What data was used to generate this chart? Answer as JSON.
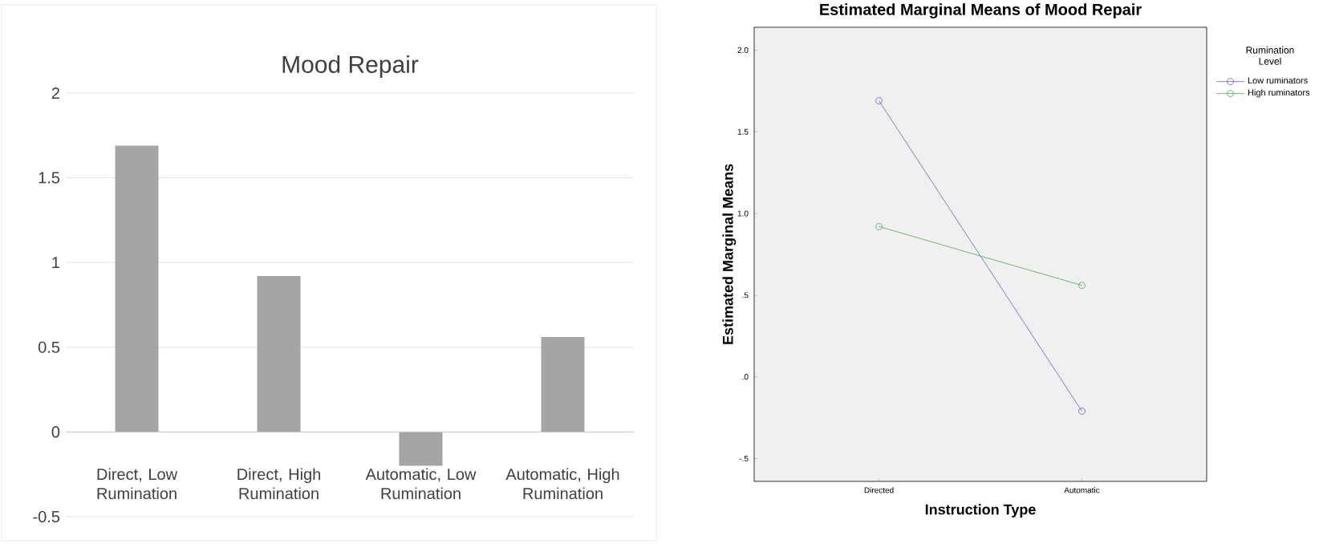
{
  "chart_data": [
    {
      "type": "bar",
      "title": "Mood Repair",
      "categories": [
        "Direct, Low Rumination",
        "Direct, High Rumination",
        "Automatic, Low Rumination",
        "Automatic, High Rumination"
      ],
      "values": [
        1.69,
        0.92,
        -0.2,
        0.56
      ],
      "color": "#a5a5a5",
      "ylim": [
        -0.5,
        2
      ],
      "yticks": [
        -0.5,
        0,
        0.5,
        1,
        1.5,
        2
      ],
      "grid": "y"
    },
    {
      "type": "line",
      "title": "Estimated Marginal Means of Mood Repair",
      "xlabel": "Instruction Type",
      "ylabel": "Estimated Marginal Means",
      "legend_title": "Rumination Level",
      "categories": [
        "Directed",
        "Automatic"
      ],
      "series": [
        {
          "name": "Low ruminators",
          "color": "#5a5fc0",
          "values": [
            1.69,
            -0.21
          ]
        },
        {
          "name": "High ruminators",
          "color": "#3cb44b",
          "values": [
            0.92,
            0.56
          ]
        }
      ],
      "ylim": [
        -0.64,
        2.14
      ],
      "yticks": [
        {
          "value": -0.5,
          "label": "-.5"
        },
        {
          "value": 0,
          "label": ".0"
        },
        {
          "value": 0.5,
          "label": ".5"
        },
        {
          "value": 1,
          "label": "1.0"
        },
        {
          "value": 1.5,
          "label": "1.5"
        },
        {
          "value": 2,
          "label": "2.0"
        }
      ],
      "marker": "circle",
      "legend": "top right",
      "grid": false
    }
  ]
}
